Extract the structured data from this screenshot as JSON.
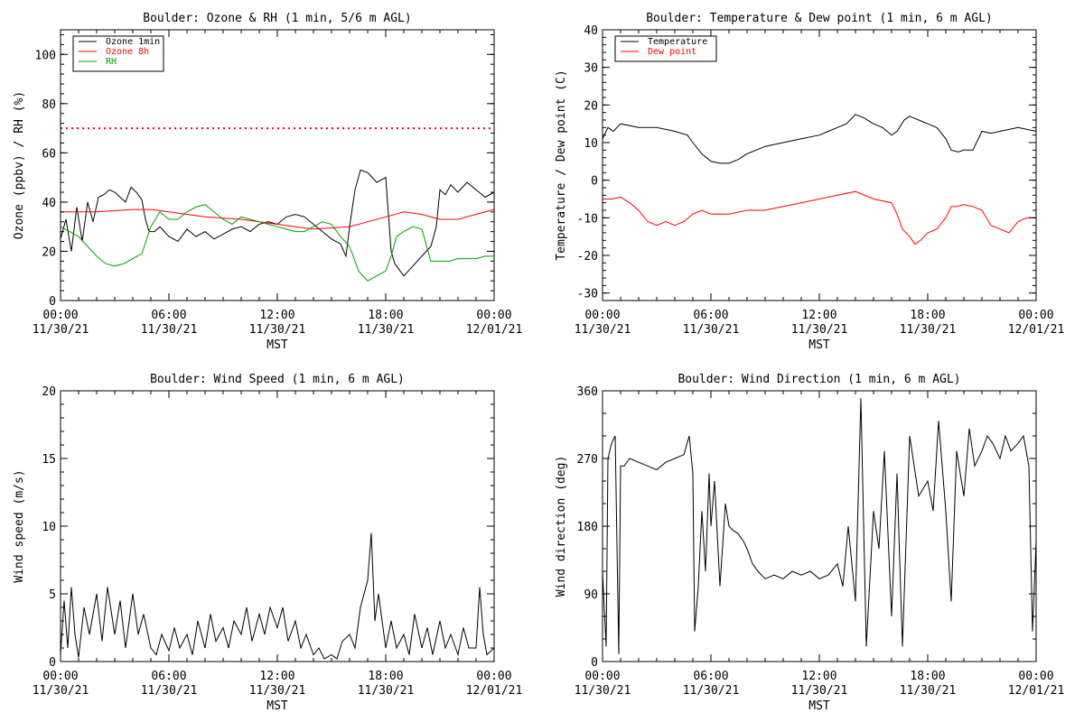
{
  "chart_data": [
    {
      "type": "line",
      "title": "Boulder: Ozone & RH (1 min, 5/6 m AGL)",
      "ylabel": "Ozone (ppbv) / RH (%)",
      "xlabel": "MST",
      "xlim": [
        0,
        24
      ],
      "ylim": [
        0,
        110
      ],
      "yticks": [
        0,
        20,
        40,
        60,
        80,
        100
      ],
      "xticks": [
        {
          "time": "00:00",
          "date": "11/30/21"
        },
        {
          "time": "06:00",
          "date": "11/30/21"
        },
        {
          "time": "12:00",
          "date": "11/30/21"
        },
        {
          "time": "18:00",
          "date": "11/30/21"
        },
        {
          "time": "00:00",
          "date": "12/01/21"
        }
      ],
      "legend_position": "top-left",
      "reference_line": {
        "y": 70,
        "color": "#ff0000",
        "style": "dotted"
      },
      "series": [
        {
          "name": "Ozone 1min",
          "color": "#000000",
          "x": [
            0,
            0.3,
            0.6,
            0.9,
            1.2,
            1.5,
            1.8,
            2.1,
            2.4,
            2.7,
            3.0,
            3.3,
            3.6,
            3.9,
            4.2,
            4.5,
            4.7,
            4.9,
            5.2,
            5.5,
            6.0,
            6.5,
            7.0,
            7.5,
            8.0,
            8.5,
            9.0,
            9.5,
            10.0,
            10.5,
            11.0,
            11.5,
            12.0,
            12.5,
            13.0,
            13.5,
            14.0,
            14.5,
            15.0,
            15.5,
            15.8,
            16.0,
            16.3,
            16.6,
            17.0,
            17.5,
            18.0,
            18.3,
            18.5,
            18.8,
            19.0,
            19.5,
            20.0,
            20.5,
            20.8,
            21.0,
            21.3,
            21.6,
            22.0,
            22.5,
            23.0,
            23.5,
            24.0
          ],
          "y": [
            25,
            33,
            20,
            38,
            24,
            40,
            32,
            42,
            43,
            45,
            44,
            42,
            40,
            46,
            44,
            41,
            33,
            28,
            28,
            30,
            26,
            24,
            29,
            26,
            28,
            25,
            27,
            29,
            30,
            28,
            31,
            32,
            31,
            34,
            35,
            34,
            31,
            28,
            25,
            23,
            18,
            30,
            45,
            53,
            52,
            48,
            50,
            20,
            15,
            12,
            10,
            14,
            18,
            22,
            30,
            45,
            43,
            47,
            44,
            48,
            45,
            42,
            44
          ]
        },
        {
          "name": "Ozone 8h",
          "color": "#ff0000",
          "x": [
            0,
            2,
            4,
            5,
            6,
            8,
            10,
            12,
            14,
            16,
            17,
            18,
            19,
            20,
            21,
            22,
            23,
            24
          ],
          "y": [
            36,
            36,
            37,
            37,
            36,
            34,
            33,
            31,
            29,
            30,
            32,
            34,
            36,
            35,
            33,
            33,
            35,
            37
          ]
        },
        {
          "name": "RH",
          "color": "#00a000",
          "x": [
            0,
            0.5,
            1.0,
            1.5,
            2.0,
            2.5,
            3.0,
            3.5,
            4.0,
            4.5,
            5.0,
            5.5,
            6.0,
            6.5,
            7.0,
            7.5,
            8.0,
            8.5,
            9.0,
            9.5,
            10.0,
            10.5,
            11.0,
            11.5,
            12.0,
            12.5,
            13.0,
            13.5,
            14.0,
            14.5,
            15.0,
            15.5,
            16.0,
            16.5,
            17.0,
            17.5,
            18.0,
            18.3,
            18.6,
            19.0,
            19.5,
            20.0,
            20.5,
            21.0,
            21.5,
            22.0,
            22.5,
            23.0,
            23.5,
            24.0
          ],
          "y": [
            30,
            28,
            26,
            22,
            18,
            15,
            14,
            15,
            17,
            19,
            30,
            36,
            33,
            33,
            36,
            38,
            39,
            36,
            33,
            31,
            34,
            33,
            32,
            31,
            30,
            29,
            28,
            28,
            30,
            32,
            31,
            26,
            22,
            12,
            8,
            10,
            12,
            18,
            26,
            28,
            30,
            29,
            16,
            16,
            16,
            17,
            17,
            17,
            18,
            18
          ]
        }
      ]
    },
    {
      "type": "line",
      "title": "Boulder: Temperature & Dew point (1 min, 6 m AGL)",
      "ylabel": "Temperature / Dew point (C)",
      "xlabel": "MST",
      "xlim": [
        0,
        24
      ],
      "ylim": [
        -32,
        40
      ],
      "yticks": [
        -30,
        -20,
        -10,
        0,
        10,
        20,
        30,
        40
      ],
      "xticks": [
        {
          "time": "00:00",
          "date": "11/30/21"
        },
        {
          "time": "06:00",
          "date": "11/30/21"
        },
        {
          "time": "12:00",
          "date": "11/30/21"
        },
        {
          "time": "18:00",
          "date": "11/30/21"
        },
        {
          "time": "00:00",
          "date": "12/01/21"
        }
      ],
      "legend_position": "top-left",
      "series": [
        {
          "name": "Temperature",
          "color": "#000000",
          "x": [
            0,
            0.3,
            0.6,
            1.0,
            2.0,
            3.0,
            4.0,
            4.7,
            5.0,
            5.5,
            6.0,
            6.5,
            7.0,
            7.5,
            8.0,
            8.5,
            9.0,
            10.0,
            11.0,
            12.0,
            12.5,
            13.0,
            13.5,
            14.0,
            14.5,
            15.0,
            15.5,
            16.0,
            16.3,
            16.7,
            17.0,
            17.5,
            18.0,
            18.5,
            19.0,
            19.3,
            19.7,
            20.0,
            20.5,
            21.0,
            21.5,
            22.0,
            23.0,
            24.0
          ],
          "y": [
            11,
            14,
            13,
            15,
            14,
            14,
            13,
            12,
            10,
            7,
            5,
            4.5,
            4.5,
            5.5,
            7,
            8,
            9,
            10,
            11,
            12,
            13,
            14,
            15,
            17.5,
            16.5,
            15,
            14,
            12,
            13,
            16,
            17,
            16,
            15,
            14,
            11,
            8,
            7.5,
            8,
            8,
            13,
            12.5,
            13,
            14,
            13
          ]
        },
        {
          "name": "Dew point",
          "color": "#ff0000",
          "x": [
            0,
            0.5,
            1.0,
            1.5,
            2.0,
            2.5,
            3.0,
            3.5,
            4.0,
            4.5,
            5.0,
            5.5,
            6.0,
            7.0,
            8.0,
            9.0,
            10.0,
            11.0,
            12.0,
            13.0,
            14.0,
            15.0,
            16.0,
            16.3,
            16.6,
            17.0,
            17.3,
            17.6,
            18.0,
            18.5,
            19.0,
            19.3,
            19.6,
            20.0,
            20.5,
            21.0,
            21.5,
            22.0,
            22.5,
            23.0,
            23.5,
            24.0
          ],
          "y": [
            -5,
            -5,
            -4.5,
            -6,
            -8,
            -11,
            -12,
            -11,
            -12,
            -11,
            -9,
            -8,
            -9,
            -9,
            -8,
            -8,
            -7,
            -6,
            -5,
            -4,
            -3,
            -5,
            -6,
            -9,
            -13,
            -15,
            -17,
            -16,
            -14,
            -13,
            -10,
            -7,
            -7,
            -6.5,
            -7,
            -8,
            -12,
            -13,
            -14,
            -11,
            -10,
            -10
          ]
        }
      ]
    },
    {
      "type": "line",
      "title": "Boulder: Wind Speed (1 min, 6 m AGL)",
      "ylabel": "Wind speed (m/s)",
      "xlabel": "MST",
      "xlim": [
        0,
        24
      ],
      "ylim": [
        0,
        20
      ],
      "yticks": [
        0,
        5,
        10,
        15,
        20
      ],
      "xticks": [
        {
          "time": "00:00",
          "date": "11/30/21"
        },
        {
          "time": "06:00",
          "date": "11/30/21"
        },
        {
          "time": "12:00",
          "date": "11/30/21"
        },
        {
          "time": "18:00",
          "date": "11/30/21"
        },
        {
          "time": "00:00",
          "date": "12/01/21"
        }
      ],
      "series": [
        {
          "name": "",
          "color": "#000000",
          "x": [
            0,
            0.2,
            0.4,
            0.6,
            0.8,
            1.0,
            1.3,
            1.6,
            2.0,
            2.3,
            2.6,
            3.0,
            3.3,
            3.6,
            4.0,
            4.3,
            4.6,
            5.0,
            5.3,
            5.6,
            6.0,
            6.3,
            6.6,
            7.0,
            7.3,
            7.6,
            8.0,
            8.3,
            8.6,
            9.0,
            9.3,
            9.6,
            10.0,
            10.3,
            10.6,
            11.0,
            11.3,
            11.6,
            12.0,
            12.3,
            12.6,
            13.0,
            13.3,
            13.6,
            14.0,
            14.3,
            14.6,
            15.0,
            15.3,
            15.6,
            16.0,
            16.3,
            16.6,
            17.0,
            17.2,
            17.4,
            17.6,
            18.0,
            18.3,
            18.6,
            19.0,
            19.3,
            19.6,
            20.0,
            20.3,
            20.6,
            21.0,
            21.3,
            21.6,
            22.0,
            22.3,
            22.6,
            23.0,
            23.2,
            23.4,
            23.6,
            24.0
          ],
          "y": [
            0.5,
            4.5,
            1.0,
            5.5,
            2.0,
            0.3,
            4.0,
            2.0,
            5.0,
            1.5,
            5.5,
            2.0,
            4.5,
            1.0,
            5.0,
            2.0,
            3.5,
            1.0,
            0.5,
            2.0,
            0.8,
            2.5,
            1.0,
            2.0,
            0.5,
            3.0,
            1.0,
            3.5,
            1.5,
            2.5,
            1.0,
            3.0,
            2.0,
            4.0,
            1.5,
            3.5,
            2.0,
            4.0,
            2.5,
            4.0,
            1.5,
            3.0,
            1.0,
            2.0,
            0.5,
            1.0,
            0.2,
            0.5,
            0.2,
            1.5,
            2.0,
            1.0,
            4.0,
            6.0,
            9.5,
            3.0,
            5.0,
            1.0,
            3.0,
            1.0,
            2.0,
            0.5,
            3.5,
            1.0,
            2.5,
            0.5,
            3.0,
            1.0,
            2.0,
            0.5,
            2.5,
            1.0,
            1.0,
            5.5,
            2.0,
            0.5,
            1.0
          ]
        }
      ]
    },
    {
      "type": "line",
      "title": "Boulder: Wind Direction (1 min, 6 m AGL)",
      "ylabel": "Wind direction (deg)",
      "xlabel": "MST",
      "xlim": [
        0,
        24
      ],
      "ylim": [
        0,
        360
      ],
      "yticks": [
        0,
        90,
        180,
        270,
        360
      ],
      "xticks": [
        {
          "time": "00:00",
          "date": "11/30/21"
        },
        {
          "time": "06:00",
          "date": "11/30/21"
        },
        {
          "time": "12:00",
          "date": "11/30/21"
        },
        {
          "time": "18:00",
          "date": "11/30/21"
        },
        {
          "time": "00:00",
          "date": "12/01/21"
        }
      ],
      "series": [
        {
          "name": "",
          "color": "#000000",
          "x": [
            0,
            0.2,
            0.3,
            0.5,
            0.7,
            0.9,
            1.0,
            1.2,
            1.5,
            2.0,
            2.5,
            3.0,
            3.5,
            4.0,
            4.5,
            4.8,
            5.0,
            5.1,
            5.3,
            5.5,
            5.7,
            5.9,
            6.0,
            6.2,
            6.5,
            6.8,
            7.0,
            7.2,
            7.5,
            7.8,
            8.0,
            8.3,
            8.6,
            9.0,
            9.5,
            10.0,
            10.5,
            11.0,
            11.5,
            12.0,
            12.5,
            13.0,
            13.3,
            13.6,
            14.0,
            14.3,
            14.6,
            15.0,
            15.3,
            15.6,
            16.0,
            16.3,
            16.6,
            17.0,
            17.5,
            18.0,
            18.3,
            18.6,
            19.0,
            19.3,
            19.6,
            20.0,
            20.3,
            20.6,
            21.0,
            21.3,
            21.6,
            22.0,
            22.3,
            22.6,
            23.0,
            23.3,
            23.6,
            23.8,
            24.0
          ],
          "y": [
            120,
            20,
            270,
            290,
            300,
            10,
            260,
            260,
            270,
            265,
            260,
            255,
            265,
            270,
            275,
            300,
            250,
            40,
            100,
            200,
            120,
            250,
            180,
            240,
            100,
            210,
            180,
            175,
            170,
            160,
            150,
            130,
            120,
            110,
            115,
            110,
            120,
            115,
            120,
            110,
            115,
            130,
            100,
            180,
            80,
            350,
            20,
            200,
            150,
            280,
            60,
            250,
            20,
            300,
            220,
            240,
            200,
            320,
            200,
            80,
            280,
            220,
            310,
            260,
            280,
            300,
            290,
            270,
            300,
            280,
            290,
            300,
            260,
            40,
            160
          ]
        }
      ]
    }
  ]
}
